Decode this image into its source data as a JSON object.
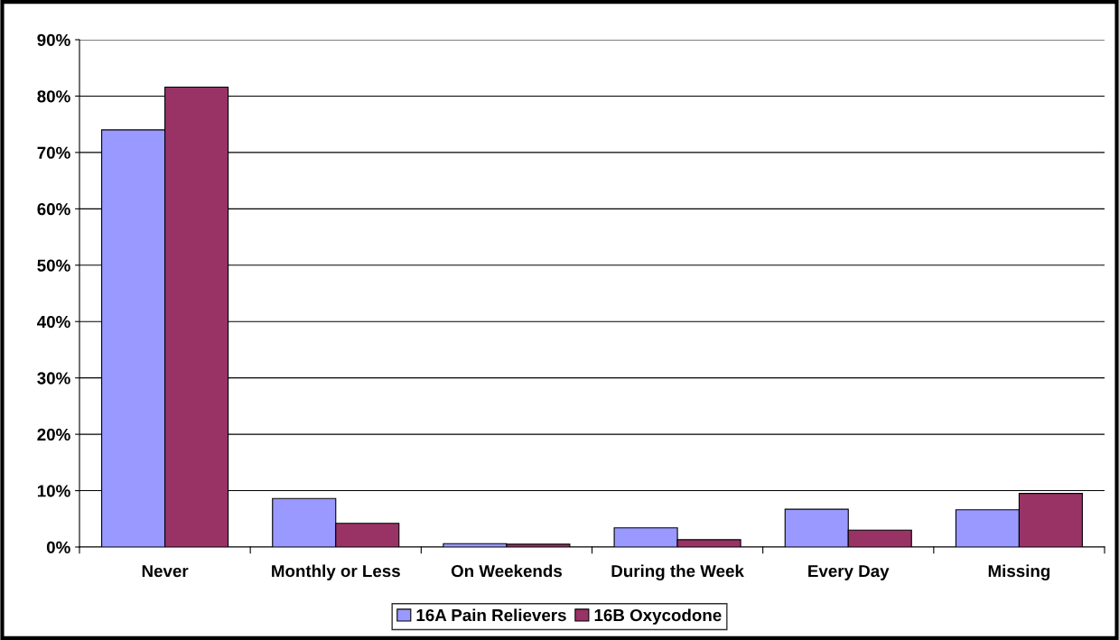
{
  "chart_data": {
    "type": "bar",
    "categories": [
      "Never",
      "Monthly or Less",
      "On Weekends",
      "During the Week",
      "Every Day",
      "Missing"
    ],
    "series": [
      {
        "name": "16A Pain Relievers",
        "color": "#9999ff",
        "values": [
          74.0,
          8.6,
          0.6,
          3.4,
          6.7,
          6.6
        ]
      },
      {
        "name": "16B Oxycodone",
        "color": "#993366",
        "values": [
          81.6,
          4.2,
          0.5,
          1.3,
          3.0,
          9.5
        ]
      }
    ],
    "ylim": [
      0,
      90
    ],
    "yticks": [
      {
        "value": 0,
        "label": "0%"
      },
      {
        "value": 10,
        "label": "10%"
      },
      {
        "value": 20,
        "label": "20%"
      },
      {
        "value": 30,
        "label": "30%"
      },
      {
        "value": 40,
        "label": "40%"
      },
      {
        "value": 50,
        "label": "50%"
      },
      {
        "value": 60,
        "label": "60%"
      },
      {
        "value": 70,
        "label": "70%"
      },
      {
        "value": 80,
        "label": "80%"
      },
      {
        "value": 90,
        "label": "90%"
      }
    ],
    "grid": "y",
    "legend": "bottom"
  }
}
